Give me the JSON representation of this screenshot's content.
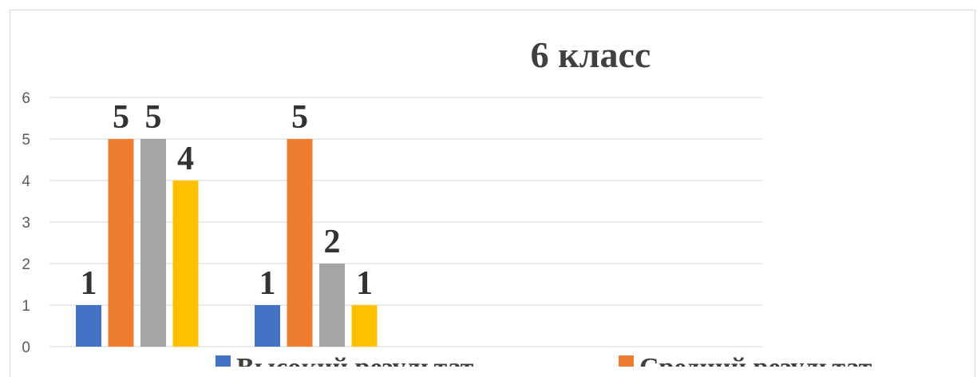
{
  "chart_data": {
    "type": "bar",
    "title": "6 класс",
    "ylim": [
      0,
      6
    ],
    "yticks": [
      "0",
      "1",
      "2",
      "3",
      "4",
      "5",
      "6"
    ],
    "grid": true,
    "legend_position": "bottom",
    "categories": [
      "",
      ""
    ],
    "series": [
      {
        "name": "Высокий результат",
        "color": "#4472C4",
        "values": [
          1,
          1
        ]
      },
      {
        "name": "Средний результат",
        "color": "#ED7D31",
        "values": [
          5,
          5
        ]
      },
      {
        "name": "",
        "color": "#A5A5A5",
        "values": [
          5,
          2
        ]
      },
      {
        "name": "",
        "color": "#FFC000",
        "values": [
          4,
          1
        ]
      }
    ]
  }
}
